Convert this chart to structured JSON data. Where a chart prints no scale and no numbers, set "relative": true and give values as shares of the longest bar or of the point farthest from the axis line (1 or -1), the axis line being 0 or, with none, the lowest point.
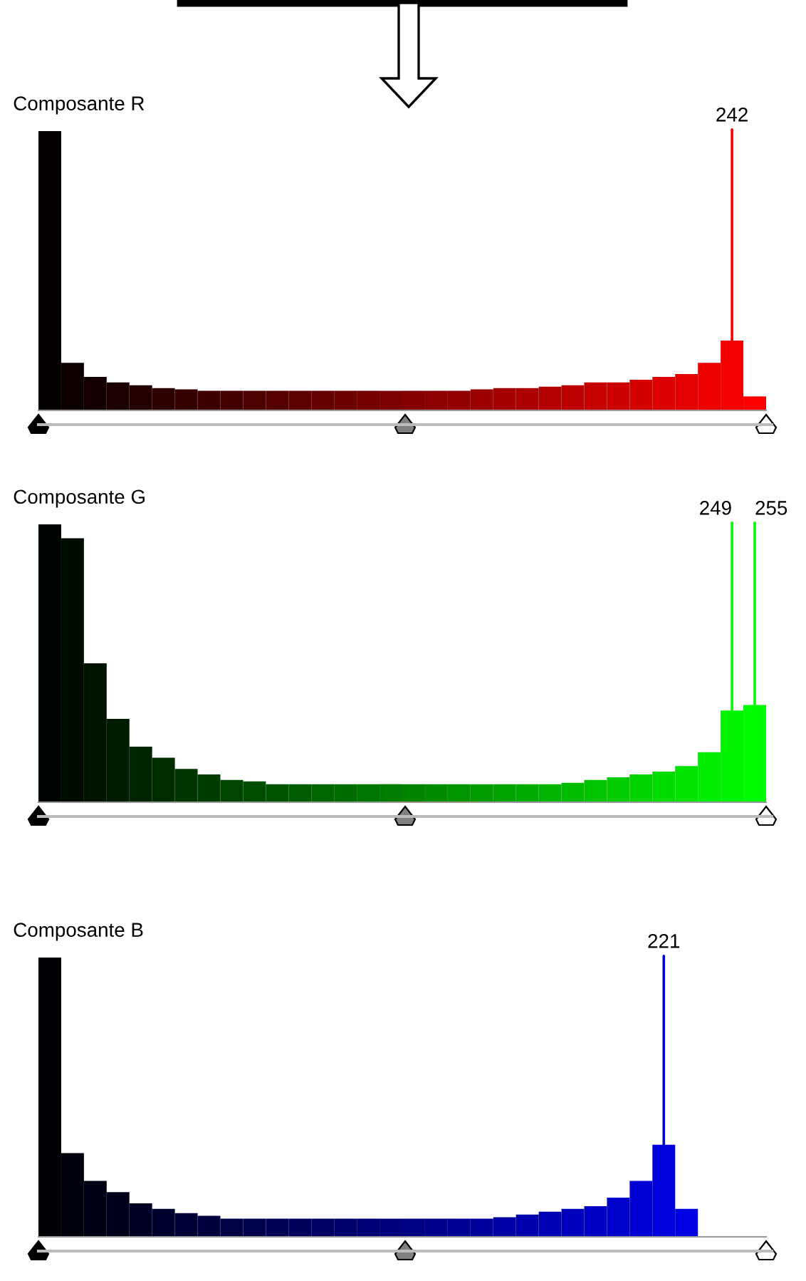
{
  "chart_data": [
    {
      "type": "bar",
      "title": "Composante R",
      "relative": true,
      "categories": [
        null,
        null,
        null,
        null,
        null,
        null,
        null,
        null,
        null,
        null,
        null,
        null,
        null,
        null,
        null,
        null,
        null,
        null,
        null,
        null,
        null,
        null,
        null,
        null,
        null,
        null,
        null,
        null,
        null,
        null,
        null,
        null
      ],
      "values": [
        1,
        0.17,
        0.12,
        0.1,
        0.09,
        0.08,
        0.075,
        0.07,
        0.07,
        0.07,
        0.07,
        0.07,
        0.07,
        0.07,
        0.07,
        0.07,
        0.07,
        0.07,
        0.07,
        0.075,
        0.08,
        0.08,
        0.085,
        0.09,
        0.1,
        0.1,
        0.11,
        0.12,
        0.13,
        0.17,
        0.25,
        0.05
      ],
      "colors": [
        "#040000",
        "#0c0000",
        "#140000",
        "#1c0000",
        "#240000",
        "#2c0000",
        "#340000",
        "#3c0000",
        "#440000",
        "#4c0000",
        "#540000",
        "#5c0000",
        "#640000",
        "#6c0000",
        "#740000",
        "#7c0000",
        "#840000",
        "#8c0000",
        "#940000",
        "#9c0000",
        "#a40000",
        "#ac0000",
        "#b40000",
        "#bc0000",
        "#c40000",
        "#cc0000",
        "#d40000",
        "#dc0000",
        "#e40000",
        "#ec0000",
        "#f40000",
        "#fc0000"
      ],
      "annotations": [
        "242"
      ]
    },
    {
      "type": "bar",
      "title": "Composante G",
      "relative": true,
      "categories": [
        null,
        null,
        null,
        null,
        null,
        null,
        null,
        null,
        null,
        null,
        null,
        null,
        null,
        null,
        null,
        null,
        null,
        null,
        null,
        null,
        null,
        null,
        null,
        null,
        null,
        null,
        null,
        null,
        null,
        null,
        null,
        null
      ],
      "values": [
        1,
        0.95,
        0.5,
        0.3,
        0.2,
        0.16,
        0.12,
        0.1,
        0.08,
        0.075,
        0.065,
        0.065,
        0.065,
        0.065,
        0.065,
        0.065,
        0.065,
        0.065,
        0.065,
        0.065,
        0.065,
        0.065,
        0.065,
        0.07,
        0.08,
        0.09,
        0.1,
        0.11,
        0.13,
        0.18,
        0.33,
        0.35
      ],
      "colors": [
        "#000400",
        "#000c00",
        "#001400",
        "#001c00",
        "#002400",
        "#002c00",
        "#003400",
        "#003c00",
        "#004400",
        "#004c00",
        "#005400",
        "#005c00",
        "#006400",
        "#006c00",
        "#007400",
        "#007c00",
        "#008400",
        "#008c00",
        "#009400",
        "#009c00",
        "#00a400",
        "#00ac00",
        "#00b400",
        "#00bc00",
        "#00c400",
        "#00cc00",
        "#00d400",
        "#00dc00",
        "#00e400",
        "#00ec00",
        "#00f400",
        "#00fc00"
      ],
      "annotations": [
        "249",
        "255"
      ]
    },
    {
      "type": "bar",
      "title": "Composante B",
      "relative": true,
      "categories": [
        null,
        null,
        null,
        null,
        null,
        null,
        null,
        null,
        null,
        null,
        null,
        null,
        null,
        null,
        null,
        null,
        null,
        null,
        null,
        null,
        null,
        null,
        null,
        null,
        null,
        null,
        null,
        null,
        null
      ],
      "values": [
        1,
        0.3,
        0.2,
        0.16,
        0.12,
        0.1,
        0.085,
        0.075,
        0.065,
        0.065,
        0.065,
        0.065,
        0.065,
        0.065,
        0.065,
        0.065,
        0.065,
        0.065,
        0.065,
        0.065,
        0.07,
        0.08,
        0.09,
        0.1,
        0.11,
        0.14,
        0.2,
        0.33,
        0.1
      ],
      "colors": [
        "#000004",
        "#00000c",
        "#000014",
        "#00001c",
        "#000024",
        "#00002c",
        "#000034",
        "#00003c",
        "#000044",
        "#00004c",
        "#000054",
        "#00005c",
        "#000064",
        "#00006c",
        "#000074",
        "#00007c",
        "#000084",
        "#00008c",
        "#000094",
        "#00009c",
        "#0000a4",
        "#0000ac",
        "#0000b4",
        "#0000bc",
        "#0000c4",
        "#0000cc",
        "#0000d4",
        "#0000dc",
        "#0000e4"
      ],
      "annotations": [
        "221"
      ]
    }
  ]
}
